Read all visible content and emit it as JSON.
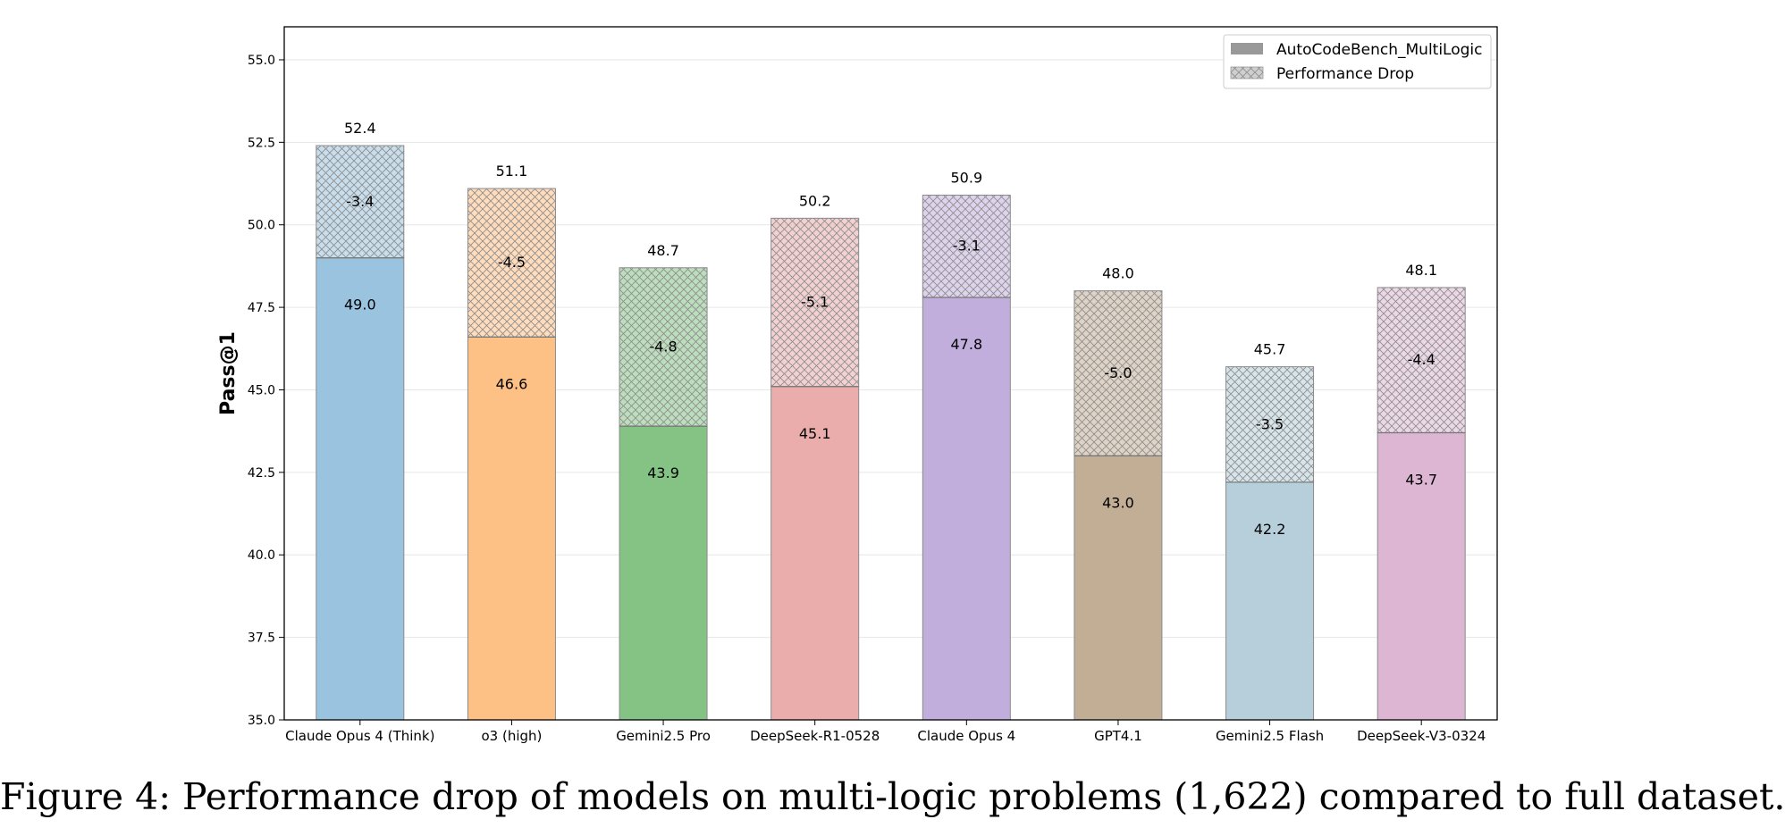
{
  "chart_data": {
    "type": "bar",
    "ylabel": "Pass@1",
    "ylim": [
      35.0,
      56.0
    ],
    "yticks": [
      "35.0",
      "37.5",
      "40.0",
      "42.5",
      "45.0",
      "47.5",
      "50.0",
      "52.5",
      "55.0"
    ],
    "grid": true,
    "legend_position": "top-right",
    "categories": [
      "Claude Opus 4 (Think)",
      "o3 (high)",
      "Gemini2.5 Pro",
      "DeepSeek-R1-0528",
      "Claude Opus 4",
      "GPT4.1",
      "Gemini2.5 Flash",
      "DeepSeek-V3-0324"
    ],
    "colors": [
      "#9ac3df",
      "#fdc085",
      "#85c385",
      "#ebacac",
      "#c2aedd",
      "#c2ae95",
      "#b7cfdb",
      "#ddb6d3"
    ],
    "series": [
      {
        "name": "AutoCodeBench_MultiLogic",
        "values": [
          49.0,
          46.6,
          43.9,
          45.1,
          47.8,
          43.0,
          42.2,
          43.7
        ],
        "labels": [
          "49.0",
          "46.6",
          "43.9",
          "45.1",
          "47.8",
          "43.0",
          "42.2",
          "43.7"
        ]
      },
      {
        "name": "Performance Drop",
        "values": [
          -3.4,
          -4.5,
          -4.8,
          -5.1,
          -3.1,
          -5.0,
          -3.5,
          -4.4
        ],
        "labels": [
          "-3.4",
          "-4.5",
          "-4.8",
          "-5.1",
          "-3.1",
          "-5.0",
          "-3.5",
          "-4.4"
        ]
      }
    ],
    "full_values": [
      52.4,
      51.1,
      48.7,
      50.2,
      50.9,
      48.0,
      45.7,
      48.1
    ],
    "full_labels": [
      "52.4",
      "51.1",
      "48.7",
      "50.2",
      "50.9",
      "48.0",
      "45.7",
      "48.1"
    ]
  },
  "caption": "Figure 4: Performance drop of models on multi-logic problems (1,622) compared to full dataset."
}
